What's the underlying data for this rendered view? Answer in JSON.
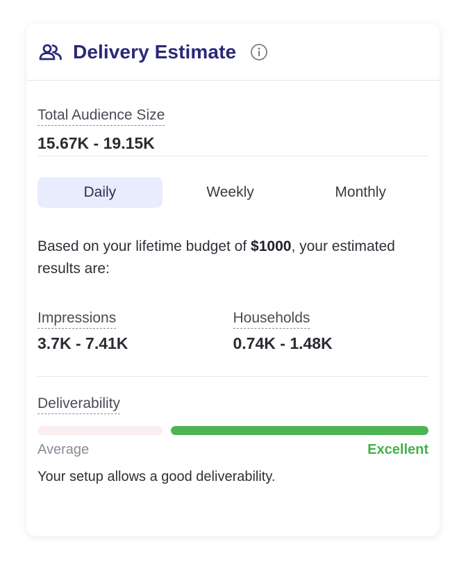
{
  "header": {
    "title": "Delivery Estimate",
    "icon": "people-icon",
    "info_icon": "info-icon",
    "title_color": "#2a2877"
  },
  "audience": {
    "label": "Total Audience Size",
    "value": "15.67K - 19.15K"
  },
  "tabs": [
    {
      "label": "Daily",
      "active": true
    },
    {
      "label": "Weekly",
      "active": false
    },
    {
      "label": "Monthly",
      "active": false
    }
  ],
  "budget": {
    "prefix": "Based on your lifetime budget of ",
    "amount": "$1000",
    "suffix": ", your estimated results are:"
  },
  "metrics": {
    "impressions": {
      "label": "Impressions",
      "value": "3.7K - 7.41K"
    },
    "households": {
      "label": "Households",
      "value": "0.74K - 1.48K"
    }
  },
  "deliverability": {
    "label": "Deliverability",
    "level": 1.0,
    "low_label": "Average",
    "high_label": "Excellent",
    "message": "Your setup allows a good deliverability.",
    "colors": {
      "good": "#4cb453",
      "low_track": "#fbeeee",
      "good_text": "#44b04b"
    }
  }
}
